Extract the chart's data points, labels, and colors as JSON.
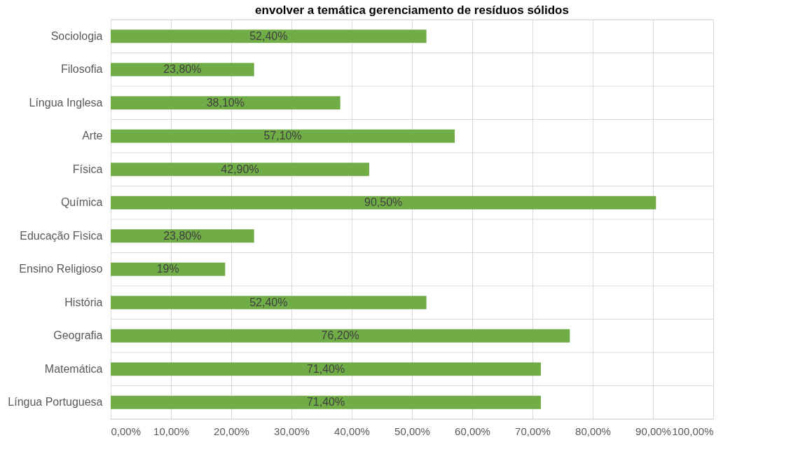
{
  "chart_data": {
    "type": "bar",
    "orientation": "horizontal",
    "title": "envolver a temática gerenciamento de resíduos sólidos",
    "categories": [
      "Sociologia",
      "Filosofia",
      "Língua Inglesa",
      "Arte",
      "Física",
      "Química",
      "Educação Fìsica",
      "Ensino Religioso",
      "História",
      "Geografia",
      "Matemática",
      "Língua Portuguesa"
    ],
    "values": [
      52.4,
      23.8,
      38.1,
      57.1,
      42.9,
      90.5,
      23.8,
      19,
      52.4,
      76.2,
      71.4,
      71.4
    ],
    "value_labels": [
      "52,40%",
      "23,80%",
      "38,10%",
      "57,10%",
      "42,90%",
      "90,50%",
      "23,80%",
      "19%",
      "52,40%",
      "76,20%",
      "71,40%",
      "71,40%"
    ],
    "color": "#70ad47",
    "xlim": [
      0,
      100
    ],
    "xticks": [
      {
        "value": 0,
        "label": "0,00%"
      },
      {
        "value": 10,
        "label": "10,00%"
      },
      {
        "value": 20,
        "label": "20,00%"
      },
      {
        "value": 30,
        "label": "30,00%"
      },
      {
        "value": 40,
        "label": "40,00%"
      },
      {
        "value": 50,
        "label": "50,00%"
      },
      {
        "value": 60,
        "label": "60,00%"
      },
      {
        "value": 70,
        "label": "70,00%"
      },
      {
        "value": 80,
        "label": "80,00%"
      },
      {
        "value": 90,
        "label": "90,00%"
      },
      {
        "value": 100,
        "label": "100,00%"
      }
    ],
    "grid": true
  }
}
